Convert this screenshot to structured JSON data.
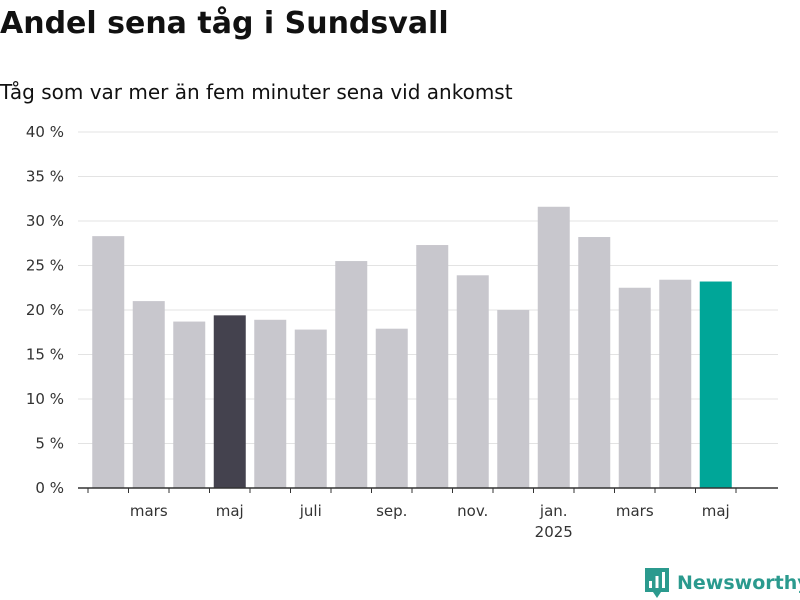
{
  "chart_data": {
    "type": "bar",
    "title": "Andel sena tåg i Sundsvall",
    "subtitle": "Tåg som var mer än fem minuter sena vid ankomst",
    "xlabel": "",
    "ylabel": "",
    "ylim": [
      0,
      40
    ],
    "y_ticks": [
      0,
      5,
      10,
      15,
      20,
      25,
      30,
      35,
      40
    ],
    "y_tick_labels": [
      "0 %",
      "5 %",
      "10 %",
      "15 %",
      "20 %",
      "25 %",
      "30 %",
      "35 %",
      "40 %"
    ],
    "grid": true,
    "legend": "none",
    "categories": [
      "2024-02",
      "2024-03",
      "2024-04",
      "2024-05",
      "2024-06",
      "2024-07",
      "2024-08",
      "2024-09",
      "2024-10",
      "2024-11",
      "2024-12",
      "2025-01",
      "2025-02",
      "2025-03",
      "2025-04",
      "2025-05"
    ],
    "values": [
      28.3,
      21.0,
      18.7,
      19.4,
      18.9,
      17.8,
      25.5,
      17.9,
      27.3,
      23.9,
      20.0,
      31.6,
      28.2,
      22.5,
      23.4,
      23.2
    ],
    "x_tick_labels": [
      {
        "category": "2024-03",
        "label": "mars",
        "sublabel": ""
      },
      {
        "category": "2024-05",
        "label": "maj",
        "sublabel": ""
      },
      {
        "category": "2024-07",
        "label": "juli",
        "sublabel": ""
      },
      {
        "category": "2024-09",
        "label": "sep.",
        "sublabel": ""
      },
      {
        "category": "2024-11",
        "label": "nov.",
        "sublabel": ""
      },
      {
        "category": "2025-01",
        "label": "jan.",
        "sublabel": "2025"
      },
      {
        "category": "2025-03",
        "label": "mars",
        "sublabel": ""
      },
      {
        "category": "2025-05",
        "label": "maj",
        "sublabel": ""
      }
    ],
    "colors": {
      "default": "#c8c7cd",
      "highlight_previous_year": "#44424e",
      "highlight_latest": "#00a698",
      "grid": "#e3e3e3",
      "axis": "#333333"
    },
    "highlights": {
      "2024-05": "highlight_previous_year",
      "2025-05": "highlight_latest"
    }
  },
  "brand": {
    "name": "Newsworthy",
    "icon": "newsworthy-logo-icon",
    "color": "#2b9a8e"
  }
}
